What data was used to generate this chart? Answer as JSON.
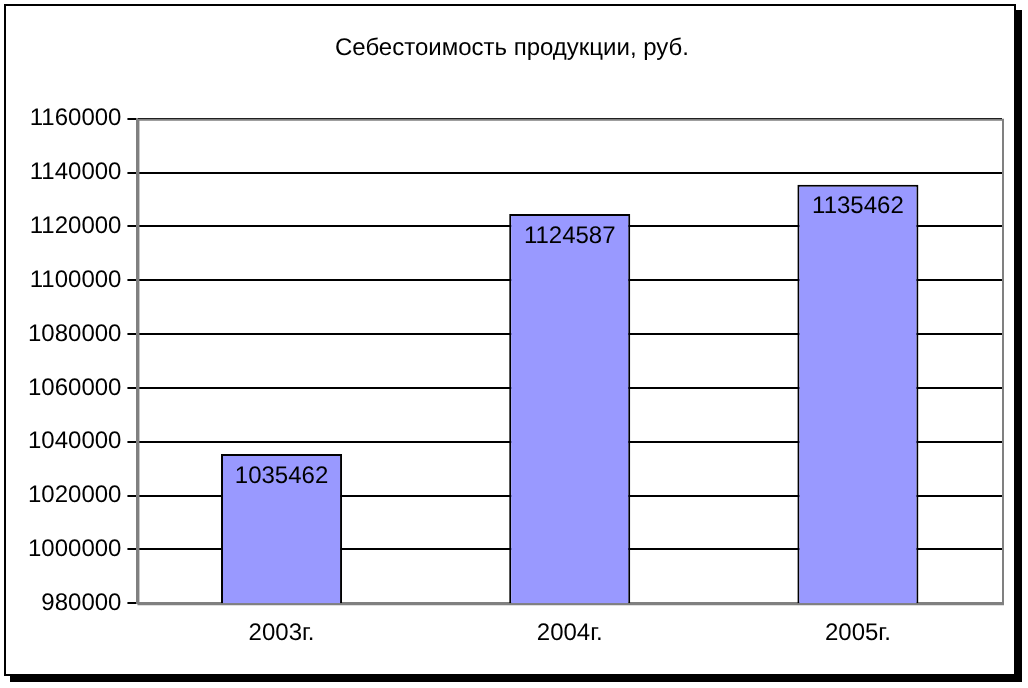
{
  "chart_data": {
    "type": "bar",
    "title": "Себестоимость продукции, руб.",
    "categories": [
      "2003г.",
      "2004г.",
      "2005г."
    ],
    "values": [
      1035462,
      1124587,
      1135462
    ],
    "color": "#9999ff",
    "ylim": [
      980000,
      1160000
    ],
    "yticks": [
      980000,
      1000000,
      1020000,
      1040000,
      1060000,
      1080000,
      1100000,
      1120000,
      1140000,
      1160000
    ],
    "grid": "y",
    "data_labels": true,
    "legend": false
  }
}
